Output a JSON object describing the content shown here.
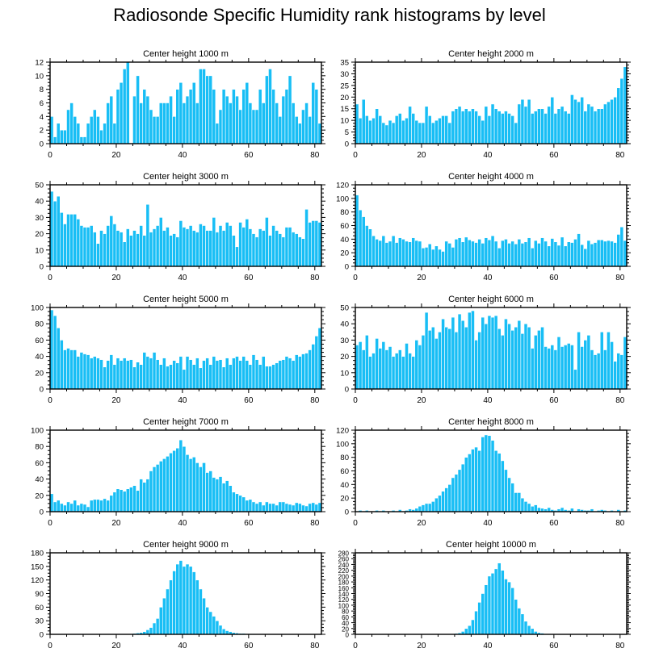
{
  "title": "Radiosonde Specific Humidity rank histograms by level",
  "colors": {
    "bar": "#18bef5",
    "bar_edge": "#ffffff",
    "axis": "#000000",
    "background": "#ffffff"
  },
  "chart_data": [
    {
      "type": "bar",
      "title": "Center height 1000 m",
      "x": {
        "min": 0,
        "max": 82,
        "ticks": [
          0,
          20,
          40,
          60,
          80
        ]
      },
      "ylim": [
        0,
        12
      ],
      "yticks": [
        0,
        2,
        4,
        6,
        8,
        10,
        12
      ],
      "values": [
        4,
        1,
        3,
        2,
        2,
        5,
        6,
        4,
        3,
        1,
        1,
        3,
        4,
        5,
        4,
        2,
        3,
        6,
        7,
        3,
        8,
        9,
        11,
        12,
        0,
        7,
        10,
        6,
        8,
        7,
        5,
        4,
        4,
        6,
        6,
        6,
        7,
        4,
        8,
        9,
        6,
        7,
        8,
        9,
        6,
        11,
        11,
        10,
        10,
        8,
        3,
        5,
        8,
        7,
        6,
        8,
        7,
        5,
        8,
        9,
        6,
        5,
        5,
        8,
        6,
        10,
        11,
        8,
        6,
        4,
        7,
        8,
        10,
        6,
        4,
        3,
        5,
        6,
        4,
        9,
        8,
        3
      ]
    },
    {
      "type": "bar",
      "title": "Center height 2000 m",
      "x": {
        "min": 0,
        "max": 82,
        "ticks": [
          0,
          20,
          40,
          60,
          80
        ]
      },
      "ylim": [
        0,
        35
      ],
      "yticks": [
        0,
        5,
        10,
        15,
        20,
        25,
        30,
        35
      ],
      "values": [
        17,
        11,
        19,
        12,
        10,
        11,
        15,
        12,
        9,
        8,
        10,
        9,
        12,
        13,
        10,
        11,
        16,
        13,
        10,
        9,
        9,
        16,
        12,
        9,
        10,
        11,
        12,
        12,
        9,
        14,
        15,
        16,
        14,
        15,
        14,
        15,
        14,
        12,
        10,
        16,
        12,
        17,
        15,
        14,
        13,
        14,
        13,
        12,
        9,
        17,
        19,
        16,
        19,
        13,
        14,
        15,
        15,
        13,
        16,
        20,
        13,
        15,
        16,
        14,
        13,
        21,
        19,
        18,
        20,
        14,
        17,
        16,
        14,
        15,
        15,
        17,
        18,
        19,
        20,
        24,
        28,
        33
      ]
    },
    {
      "type": "bar",
      "title": "Center height 3000 m",
      "x": {
        "min": 0,
        "max": 82,
        "ticks": [
          0,
          20,
          40,
          60,
          80
        ]
      },
      "ylim": [
        0,
        50
      ],
      "yticks": [
        0,
        10,
        20,
        30,
        40,
        50
      ],
      "values": [
        46,
        40,
        43,
        33,
        26,
        32,
        32,
        32,
        29,
        25,
        24,
        24,
        25,
        21,
        14,
        22,
        20,
        25,
        31,
        26,
        22,
        21,
        15,
        23,
        19,
        22,
        20,
        25,
        19,
        38,
        21,
        23,
        25,
        30,
        22,
        24,
        19,
        20,
        18,
        28,
        24,
        23,
        25,
        22,
        21,
        26,
        25,
        22,
        22,
        30,
        21,
        25,
        22,
        27,
        25,
        19,
        12,
        27,
        24,
        29,
        23,
        20,
        18,
        23,
        22,
        30,
        19,
        25,
        22,
        20,
        18,
        24,
        24,
        21,
        20,
        18,
        17,
        35,
        27,
        28,
        28,
        27
      ]
    },
    {
      "type": "bar",
      "title": "Center height 4000 m",
      "x": {
        "min": 0,
        "max": 82,
        "ticks": [
          0,
          20,
          40,
          60,
          80
        ]
      },
      "ylim": [
        0,
        120
      ],
      "yticks": [
        0,
        20,
        40,
        60,
        80,
        100,
        120
      ],
      "values": [
        105,
        83,
        73,
        60,
        55,
        45,
        40,
        38,
        45,
        35,
        37,
        45,
        35,
        42,
        40,
        37,
        36,
        42,
        38,
        37,
        27,
        28,
        33,
        25,
        30,
        25,
        22,
        37,
        34,
        28,
        40,
        42,
        36,
        43,
        39,
        37,
        35,
        40,
        34,
        42,
        39,
        45,
        37,
        27,
        38,
        40,
        34,
        37,
        33,
        40,
        34,
        36,
        42,
        27,
        38,
        34,
        42,
        37,
        30,
        41,
        36,
        31,
        43,
        30,
        36,
        35,
        40,
        48,
        32,
        26,
        38,
        33,
        35,
        39,
        39,
        37,
        38,
        37,
        35,
        47,
        58,
        38
      ]
    },
    {
      "type": "bar",
      "title": "Center height 5000 m",
      "x": {
        "min": 0,
        "max": 82,
        "ticks": [
          0,
          20,
          40,
          60,
          80
        ]
      },
      "ylim": [
        0,
        100
      ],
      "yticks": [
        0,
        20,
        40,
        60,
        80,
        100
      ],
      "values": [
        97,
        90,
        75,
        60,
        48,
        50,
        48,
        48,
        40,
        45,
        43,
        42,
        38,
        40,
        38,
        36,
        27,
        35,
        42,
        30,
        38,
        35,
        38,
        35,
        36,
        27,
        33,
        30,
        45,
        40,
        38,
        45,
        36,
        30,
        38,
        28,
        30,
        35,
        32,
        40,
        24,
        40,
        36,
        30,
        38,
        26,
        35,
        38,
        30,
        40,
        35,
        36,
        27,
        38,
        30,
        38,
        40,
        35,
        40,
        35,
        30,
        42,
        36,
        30,
        40,
        28,
        28,
        30,
        32,
        35,
        36,
        40,
        38,
        35,
        42,
        40,
        43,
        44,
        48,
        55,
        65,
        75
      ]
    },
    {
      "type": "bar",
      "title": "Center height 6000 m",
      "x": {
        "min": 0,
        "max": 82,
        "ticks": [
          0,
          20,
          40,
          60,
          80
        ]
      },
      "ylim": [
        0,
        50
      ],
      "yticks": [
        0,
        10,
        20,
        30,
        40,
        50
      ],
      "values": [
        27,
        29,
        24,
        33,
        20,
        22,
        31,
        25,
        29,
        24,
        26,
        20,
        22,
        24,
        20,
        28,
        22,
        20,
        30,
        27,
        33,
        47,
        36,
        38,
        31,
        35,
        43,
        38,
        37,
        44,
        35,
        46,
        42,
        38,
        47,
        48,
        30,
        35,
        44,
        40,
        45,
        44,
        45,
        37,
        33,
        43,
        40,
        36,
        38,
        42,
        34,
        40,
        38,
        25,
        33,
        36,
        38,
        26,
        25,
        27,
        24,
        32,
        26,
        27,
        28,
        27,
        12,
        35,
        26,
        30,
        33,
        24,
        21,
        22,
        35,
        24,
        35,
        29,
        17,
        22,
        21,
        32
      ]
    },
    {
      "type": "bar",
      "title": "Center height 7000 m",
      "x": {
        "min": 0,
        "max": 82,
        "ticks": [
          0,
          20,
          40,
          60,
          80
        ]
      },
      "ylim": [
        0,
        100
      ],
      "yticks": [
        0,
        20,
        40,
        60,
        80,
        100
      ],
      "values": [
        22,
        12,
        14,
        10,
        8,
        12,
        10,
        14,
        8,
        10,
        9,
        6,
        14,
        15,
        15,
        14,
        16,
        14,
        20,
        24,
        28,
        27,
        25,
        28,
        30,
        32,
        26,
        40,
        36,
        40,
        50,
        55,
        58,
        62,
        65,
        68,
        72,
        75,
        78,
        88,
        80,
        70,
        65,
        67,
        60,
        55,
        60,
        48,
        50,
        42,
        40,
        43,
        35,
        38,
        32,
        24,
        22,
        20,
        18,
        14,
        15,
        12,
        10,
        12,
        8,
        12,
        10,
        10,
        8,
        12,
        12,
        10,
        9,
        8,
        11,
        10,
        8,
        7,
        10,
        11,
        9,
        11
      ]
    },
    {
      "type": "bar",
      "title": "Center height 8000 m",
      "x": {
        "min": 0,
        "max": 82,
        "ticks": [
          0,
          20,
          40,
          60,
          80
        ]
      },
      "ylim": [
        0,
        120
      ],
      "yticks": [
        0,
        20,
        40,
        60,
        80,
        100,
        120
      ],
      "values": [
        1,
        2,
        1,
        2,
        1,
        0,
        2,
        1,
        2,
        1,
        0,
        2,
        1,
        3,
        1,
        2,
        4,
        3,
        5,
        8,
        10,
        12,
        12,
        15,
        20,
        24,
        30,
        35,
        40,
        50,
        55,
        62,
        70,
        80,
        85,
        92,
        95,
        90,
        110,
        113,
        112,
        105,
        90,
        86,
        75,
        62,
        50,
        42,
        28,
        28,
        20,
        15,
        12,
        8,
        10,
        6,
        5,
        4,
        6,
        3,
        2,
        4,
        6,
        3,
        2,
        5,
        1,
        4,
        3,
        2,
        2,
        4,
        1,
        2,
        3,
        2,
        1,
        2,
        1,
        3,
        1,
        2
      ]
    },
    {
      "type": "bar",
      "title": "Center height 9000 m",
      "x": {
        "min": 0,
        "max": 82,
        "ticks": [
          0,
          20,
          40,
          60,
          80
        ]
      },
      "ylim": [
        0,
        180
      ],
      "yticks": [
        0,
        30,
        60,
        90,
        120,
        150,
        180
      ],
      "values": [
        0,
        0,
        0,
        0,
        0,
        0,
        0,
        0,
        0,
        0,
        0,
        0,
        0,
        0,
        0,
        0,
        0,
        0,
        0,
        0,
        0,
        0,
        0,
        0,
        0,
        2,
        3,
        4,
        6,
        10,
        15,
        25,
        35,
        60,
        80,
        100,
        120,
        140,
        155,
        163,
        150,
        155,
        150,
        138,
        120,
        100,
        80,
        60,
        50,
        40,
        30,
        20,
        12,
        8,
        6,
        4,
        3,
        2,
        2,
        1,
        1,
        1,
        0,
        0,
        0,
        0,
        0,
        0,
        0,
        0,
        0,
        0,
        0,
        0,
        0,
        0,
        0,
        0,
        0,
        0,
        0,
        0
      ]
    },
    {
      "type": "bar",
      "title": "Center height 10000 m",
      "x": {
        "min": 0,
        "max": 82,
        "ticks": [
          0,
          20,
          40,
          60,
          80
        ]
      },
      "ylim": [
        0,
        280
      ],
      "yticks": [
        0,
        20,
        40,
        60,
        80,
        100,
        120,
        140,
        160,
        180,
        200,
        220,
        240,
        260,
        280
      ],
      "values": [
        0,
        0,
        0,
        0,
        0,
        0,
        0,
        0,
        0,
        0,
        0,
        0,
        0,
        0,
        0,
        0,
        0,
        0,
        0,
        0,
        0,
        0,
        0,
        0,
        0,
        0,
        0,
        0,
        0,
        2,
        3,
        5,
        10,
        20,
        30,
        50,
        80,
        110,
        140,
        170,
        200,
        210,
        225,
        245,
        220,
        190,
        180,
        160,
        120,
        90,
        70,
        45,
        30,
        20,
        10,
        6,
        4,
        2,
        1,
        1,
        0,
        0,
        0,
        0,
        0,
        0,
        0,
        0,
        0,
        0,
        0,
        0,
        0,
        0,
        0,
        0,
        0,
        0,
        0,
        0,
        0,
        0
      ]
    }
  ]
}
